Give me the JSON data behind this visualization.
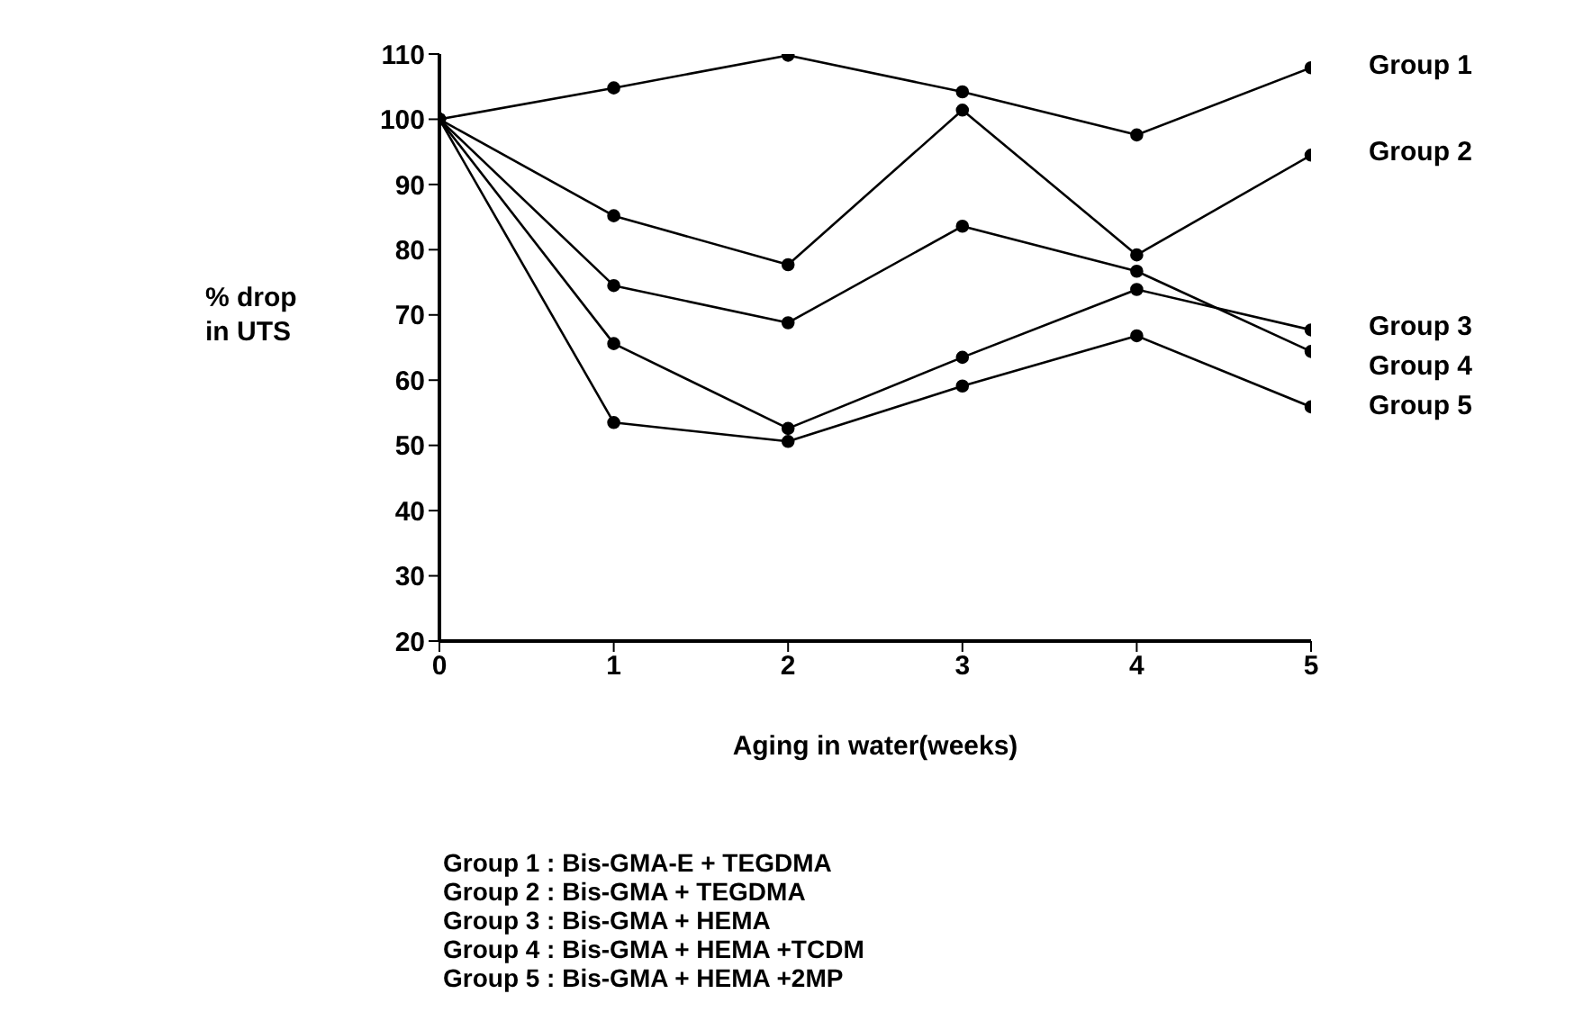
{
  "chart_data": {
    "type": "line",
    "xlabel": "Aging in water(weeks)",
    "ylabel": "% drop in UTS",
    "x": [
      0,
      1,
      2,
      3,
      4,
      5
    ],
    "xlim": [
      0,
      5
    ],
    "xticks": [
      0,
      1,
      2,
      3,
      4,
      5
    ],
    "ylim": [
      20,
      110
    ],
    "yticks": [
      20,
      30,
      40,
      50,
      60,
      70,
      80,
      90,
      100,
      110
    ],
    "grid": false,
    "legend": false,
    "marker": "circle",
    "line_style": "solid",
    "series": [
      {
        "name": "Group 1",
        "color": "#000000",
        "values": [
          100,
          104.8,
          109.8,
          104.2,
          97.6,
          107.9
        ]
      },
      {
        "name": "Group 2",
        "color": "#000000",
        "values": [
          100,
          85.2,
          77.7,
          101.4,
          79.2,
          94.5
        ]
      },
      {
        "name": "Group 3",
        "color": "#000000",
        "values": [
          100,
          65.6,
          52.6,
          63.5,
          73.9,
          67.7
        ]
      },
      {
        "name": "Group 4",
        "color": "#000000",
        "values": [
          100,
          74.5,
          68.8,
          83.6,
          76.7,
          64.4
        ]
      },
      {
        "name": "Group 5",
        "color": "#000000",
        "values": [
          100,
          53.5,
          50.6,
          59.1,
          66.8,
          55.9
        ]
      }
    ],
    "annotations": [
      "Group 1 : Bis-GMA-E + TEGDMA",
      "Group 2 : Bis-GMA + TEGDMA",
      "Group 3 : Bis-GMA + HEMA",
      "Group 4 : Bis-GMA + HEMA +TCDM",
      "Group 5 : Bis-GMA + HEMA +2MP"
    ]
  }
}
